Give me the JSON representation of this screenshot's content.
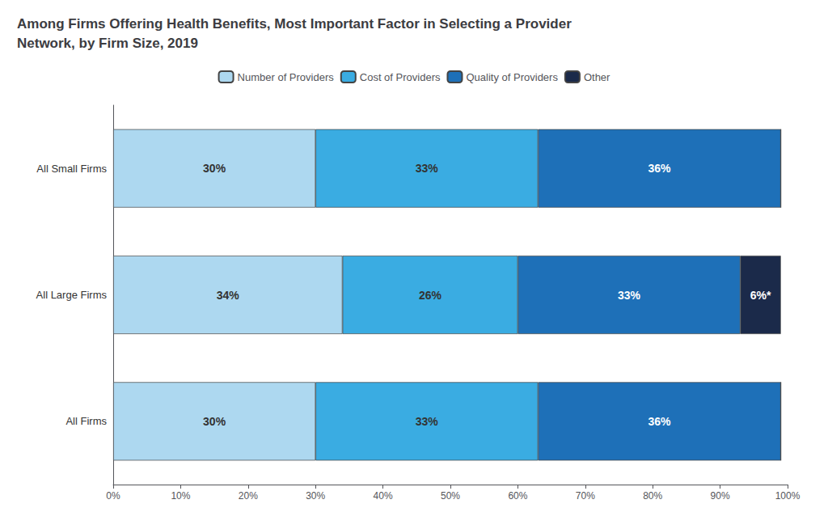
{
  "chart_data": {
    "type": "bar",
    "orientation": "horizontal",
    "stacked": true,
    "title": "Among Firms Offering Health Benefits, Most Important Factor in Selecting a Provider\nNetwork, by Firm Size, 2019",
    "categories": [
      "All Small Firms",
      "All Large Firms",
      "All Firms"
    ],
    "series": [
      {
        "name": "Number of Providers",
        "color": "#ADD8F0",
        "values": [
          30,
          34,
          30
        ],
        "value_labels": [
          "30%",
          "34%",
          "30%"
        ]
      },
      {
        "name": "Cost of Providers",
        "color": "#3AACE2",
        "values": [
          33,
          26,
          33
        ],
        "value_labels": [
          "33%",
          "26%",
          "33%"
        ]
      },
      {
        "name": "Quality of Providers",
        "color": "#1E70B8",
        "values": [
          36,
          33,
          36
        ],
        "value_labels": [
          "36%",
          "33%",
          "36%"
        ]
      },
      {
        "name": "Other",
        "color": "#1B2A4A",
        "values": [
          0,
          6,
          0
        ],
        "value_labels": [
          null,
          "6%*",
          null
        ]
      }
    ],
    "xlim": [
      0,
      100
    ],
    "xticks": [
      {
        "value": 0,
        "label": "0%"
      },
      {
        "value": 10,
        "label": "10%"
      },
      {
        "value": 20,
        "label": "20%"
      },
      {
        "value": 30,
        "label": "30%"
      },
      {
        "value": 40,
        "label": "40%"
      },
      {
        "value": 50,
        "label": "50%"
      },
      {
        "value": 60,
        "label": "60%"
      },
      {
        "value": 70,
        "label": "70%"
      },
      {
        "value": 80,
        "label": "80%"
      },
      {
        "value": 90,
        "label": "90%"
      },
      {
        "value": 100,
        "label": "100%"
      }
    ],
    "data_labels": true,
    "legend": "top",
    "grid": false
  }
}
